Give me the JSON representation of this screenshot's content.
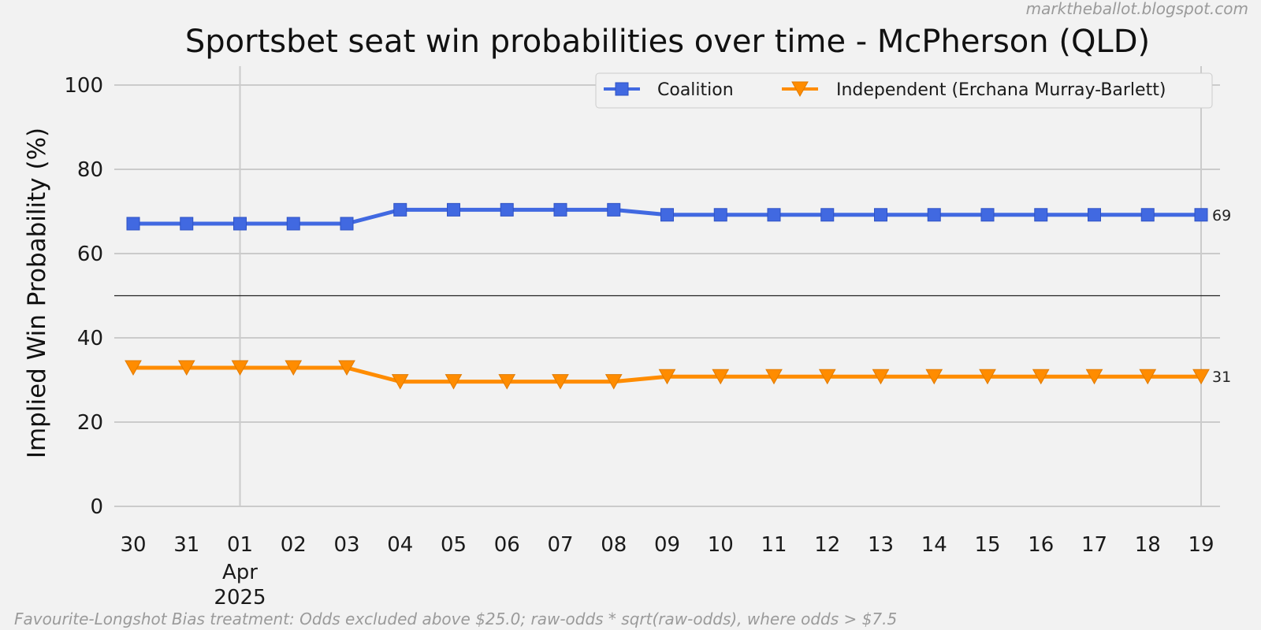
{
  "watermark": "marktheballot.blogspot.com",
  "footnote": "Favourite-Longshot Bias treatment: Odds excluded above $25.0; raw-odds * sqrt(raw-odds), where odds > $7.5",
  "chart_data": {
    "type": "line",
    "title": "Sportsbet seat win probabilities over time - McPherson (QLD)",
    "xlabel": "",
    "ylabel": "Implied Win Probability (%)",
    "ylim": [
      0,
      100
    ],
    "yticks": [
      0,
      20,
      40,
      60,
      80,
      100
    ],
    "x": [
      "30",
      "31",
      "01",
      "02",
      "03",
      "04",
      "05",
      "06",
      "07",
      "08",
      "09",
      "10",
      "11",
      "12",
      "13",
      "14",
      "15",
      "16",
      "17",
      "18",
      "19"
    ],
    "x_dates": [
      "2025-03-30",
      "2025-03-31",
      "2025-04-01",
      "2025-04-02",
      "2025-04-03",
      "2025-04-04",
      "2025-04-05",
      "2025-04-06",
      "2025-04-07",
      "2025-04-08",
      "2025-04-09",
      "2025-04-10",
      "2025-04-11",
      "2025-04-12",
      "2025-04-13",
      "2025-04-14",
      "2025-04-15",
      "2025-04-16",
      "2025-04-17",
      "2025-04-18",
      "2025-04-19"
    ],
    "x_sublabels": [
      {
        "at": "01",
        "lines": [
          "Apr",
          "2025"
        ]
      }
    ],
    "reference_line": 50,
    "grid": true,
    "legend_placement": "top-right",
    "series": [
      {
        "name": "Coalition",
        "color": "#4169e1",
        "marker": "square",
        "values": [
          67.1,
          67.1,
          67.1,
          67.1,
          67.1,
          70.4,
          70.4,
          70.4,
          70.4,
          70.4,
          69.2,
          69.2,
          69.2,
          69.2,
          69.2,
          69.2,
          69.2,
          69.2,
          69.2,
          69.2,
          69.2
        ],
        "end_label": "69"
      },
      {
        "name": "Independent (Erchana Murray-Barlett)",
        "color": "#ff8c00",
        "marker": "triangle-down",
        "values": [
          32.9,
          32.9,
          32.9,
          32.9,
          32.9,
          29.6,
          29.6,
          29.6,
          29.6,
          29.6,
          30.8,
          30.8,
          30.8,
          30.8,
          30.8,
          30.8,
          30.8,
          30.8,
          30.8,
          30.8,
          30.8
        ],
        "end_label": "31"
      }
    ]
  }
}
